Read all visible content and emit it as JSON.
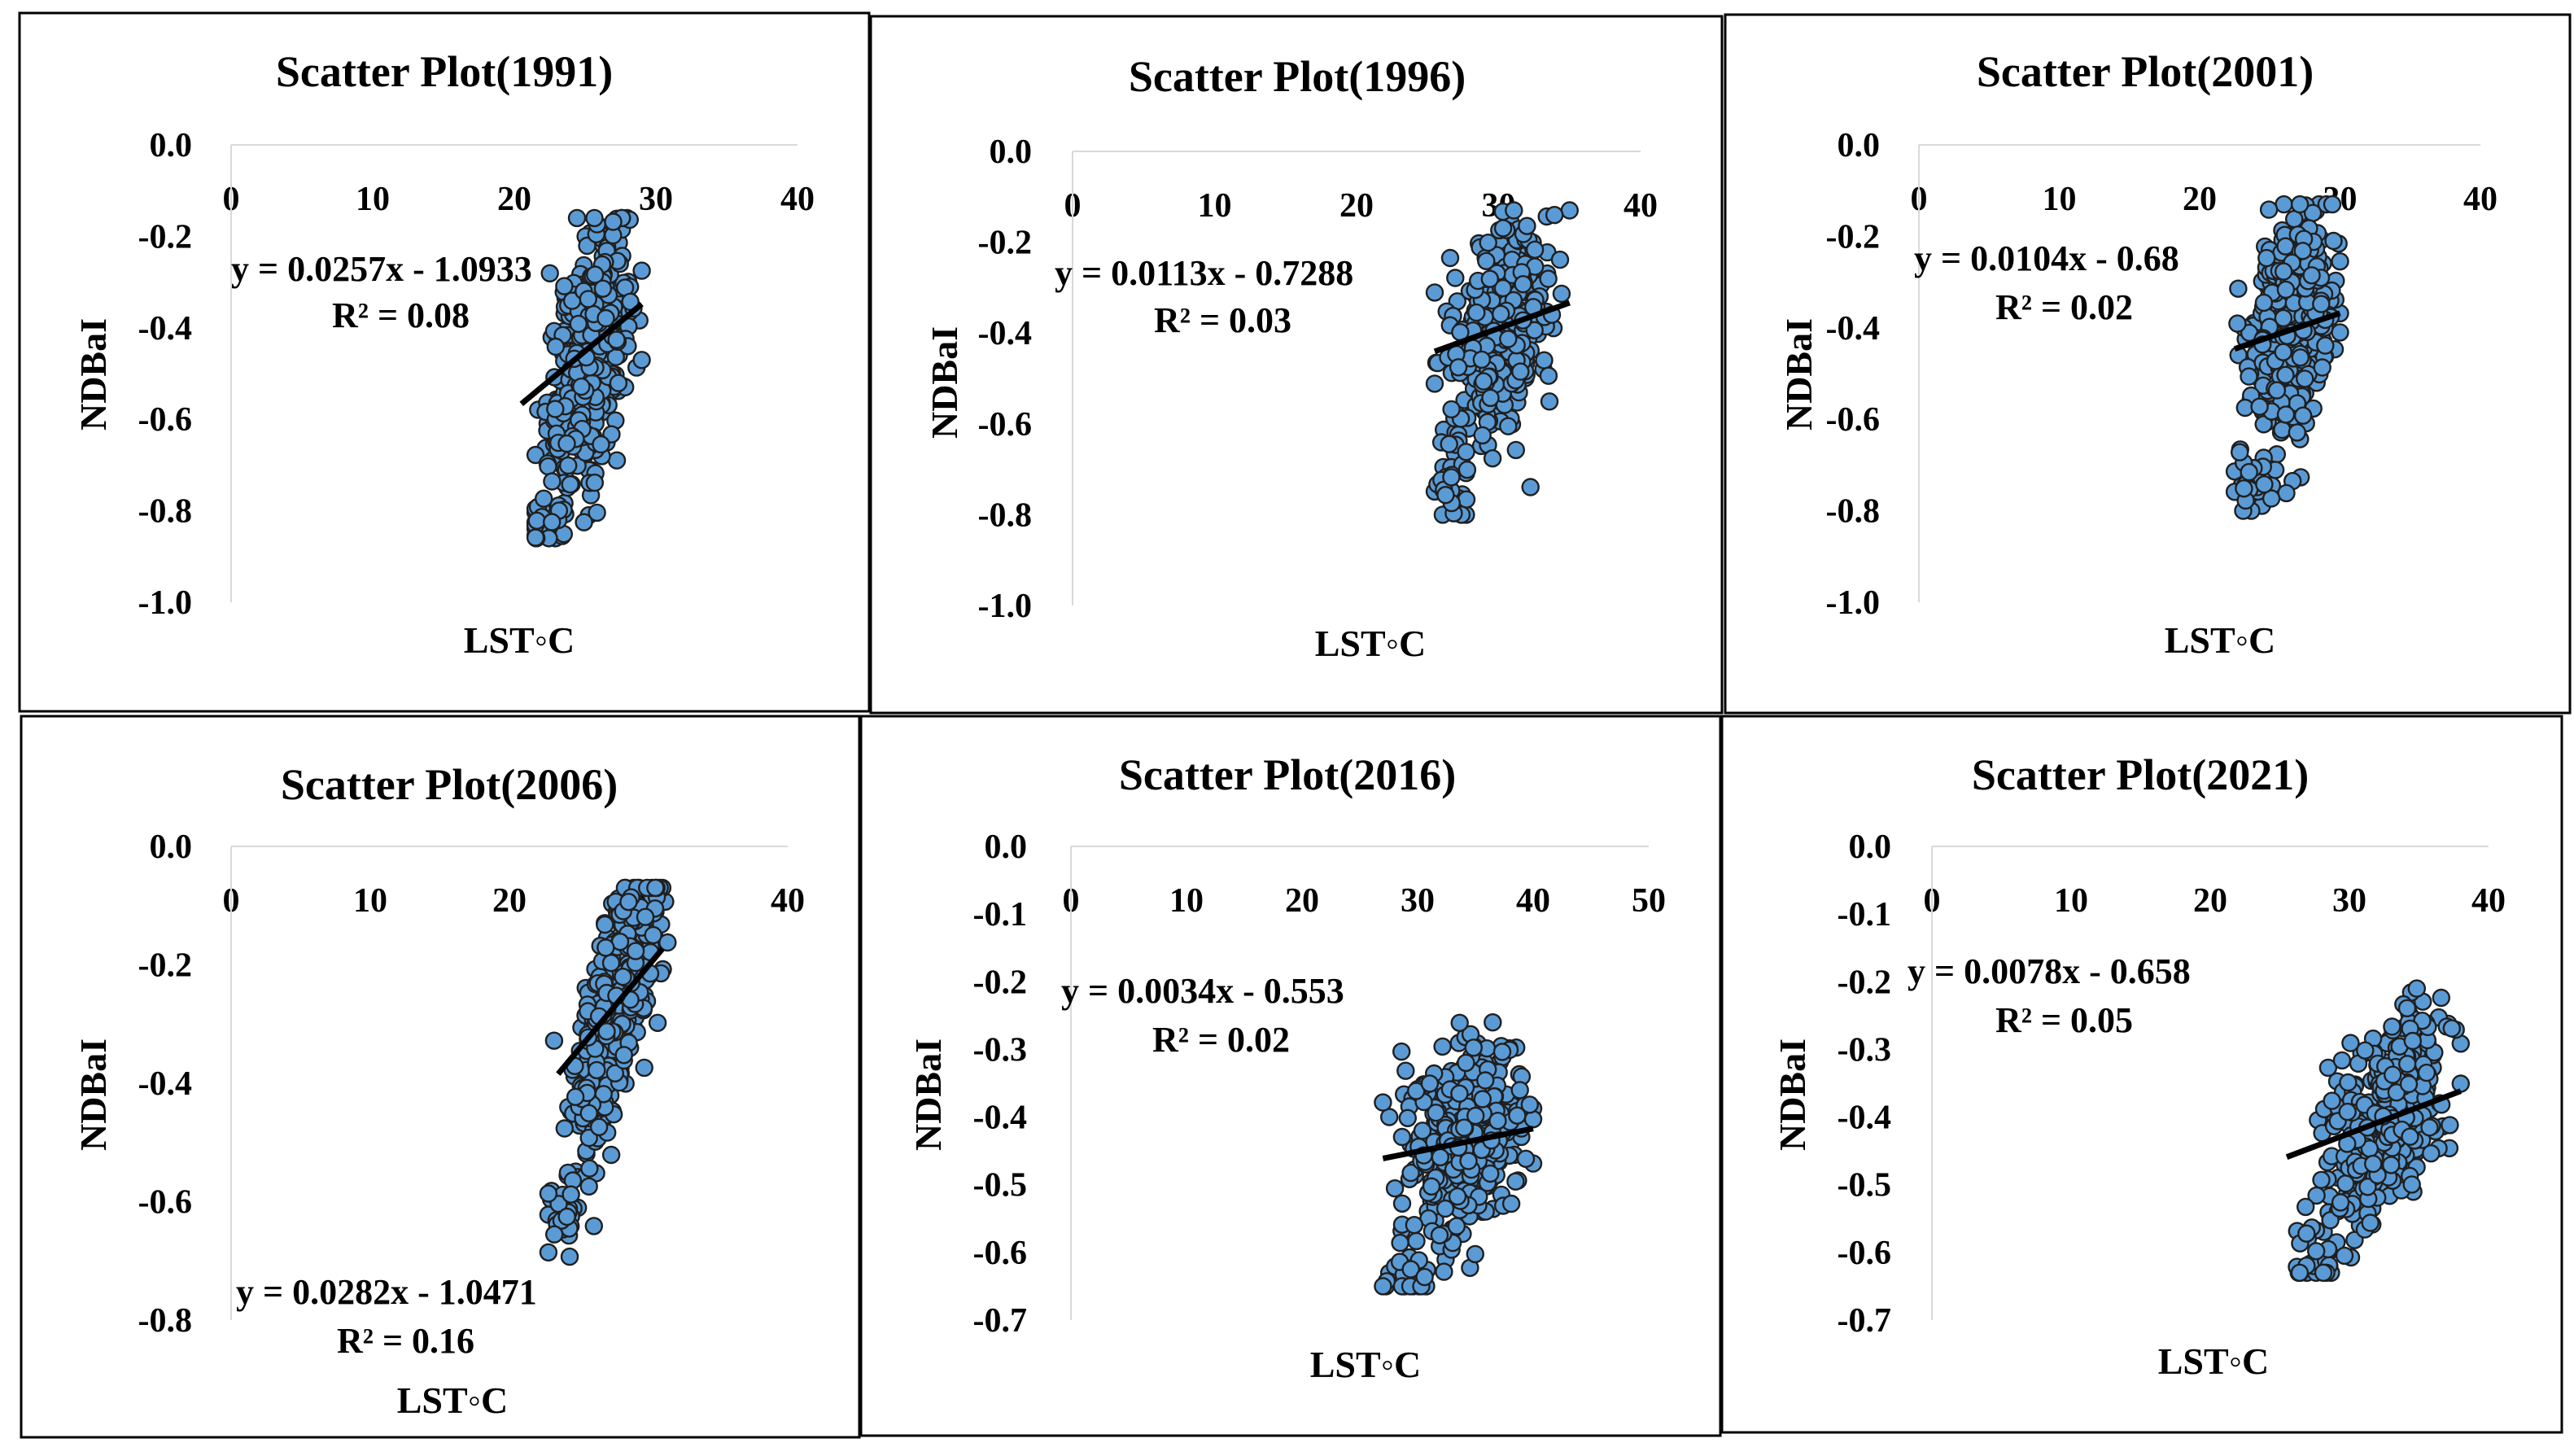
{
  "figure_name": "LST vs NDBaI scatter plots",
  "colors": {
    "marker_fill": "#5b9bd5",
    "marker_edge": "#1f1f1f",
    "trendline": "#000000",
    "axis": "#d9d9d9"
  },
  "chart_data": [
    {
      "type": "scatter",
      "title": "Scatter Plot(1991)",
      "xlabel": "LST◦C",
      "ylabel": "NDBaI",
      "xlim": [
        0,
        40
      ],
      "ylim": [
        -1.0,
        0.0
      ],
      "xticks": [
        "0",
        "10",
        "20",
        "30",
        "40"
      ],
      "yticks": [
        "0.0",
        "-0.2",
        "-0.4",
        "-0.6",
        "-0.8",
        "-1.0"
      ],
      "equation": "y = 0.0257x - 1.0933",
      "r2_label": "R² = 0.08",
      "slope": 0.0257,
      "intercept": -1.0933,
      "trend_x": [
        20.5,
        29.0
      ],
      "cloud": {
        "x_center": 25.2,
        "x_spread": 1.4,
        "x_min": 21.5,
        "x_max": 29.0,
        "y_center": -0.47,
        "y_spread": 0.12,
        "y_min": -0.86,
        "y_max": -0.16,
        "n": 420,
        "low_tail": {
          "x": 22.5,
          "y": -0.82,
          "n": 30
        }
      }
    },
    {
      "type": "scatter",
      "title": "Scatter Plot(1996)",
      "xlabel": "LST◦C",
      "ylabel": "NDBaI",
      "xlim": [
        0,
        40
      ],
      "ylim": [
        -1.0,
        0.0
      ],
      "xticks": [
        "0",
        "10",
        "20",
        "30",
        "40"
      ],
      "yticks": [
        "0.0",
        "-0.2",
        "-0.4",
        "-0.6",
        "-0.8",
        "-1.0"
      ],
      "equation": "y = 0.0113x - 0.7288",
      "r2_label": "R² = 0.03",
      "slope": 0.0113,
      "intercept": -0.7288,
      "trend_x": [
        25.5,
        35.0
      ],
      "cloud": {
        "x_center": 30.0,
        "x_spread": 1.8,
        "x_min": 25.5,
        "x_max": 35.0,
        "y_center": -0.4,
        "y_spread": 0.11,
        "y_min": -0.8,
        "y_max": -0.13,
        "n": 380,
        "low_tail": {
          "x": 26.5,
          "y": -0.75,
          "n": 28
        }
      }
    },
    {
      "type": "scatter",
      "title": "Scatter Plot(2001)",
      "xlabel": "LST◦C",
      "ylabel": "NDBaI",
      "xlim": [
        0,
        40
      ],
      "ylim": [
        -1.0,
        0.0
      ],
      "xticks": [
        "0",
        "10",
        "20",
        "30",
        "40"
      ],
      "yticks": [
        "0.0",
        "-0.2",
        "-0.4",
        "-0.6",
        "-0.8",
        "-1.0"
      ],
      "equation": "y = 0.0104x - 0.68",
      "r2_label": "R² = 0.02",
      "slope": 0.0104,
      "intercept": -0.68,
      "trend_x": [
        22.5,
        30.0
      ],
      "cloud": {
        "x_center": 26.8,
        "x_spread": 1.5,
        "x_min": 22.5,
        "x_max": 30.0,
        "y_center": -0.38,
        "y_spread": 0.11,
        "y_min": -0.8,
        "y_max": -0.13,
        "n": 420,
        "low_tail": {
          "x": 24.0,
          "y": -0.74,
          "n": 30
        }
      }
    },
    {
      "type": "scatter",
      "title": "Scatter Plot(2006)",
      "xlabel": "LST◦C",
      "ylabel": "NDBaI",
      "xlim": [
        0,
        40
      ],
      "ylim": [
        -0.8,
        0.0
      ],
      "xticks": [
        "0",
        "10",
        "20",
        "30",
        "40"
      ],
      "yticks": [
        "0.0",
        "-0.2",
        "-0.4",
        "-0.6",
        "-0.8"
      ],
      "equation": "y = 0.0282x - 1.0471",
      "r2_label": "R² = 0.16",
      "slope": 0.0282,
      "intercept": -1.0471,
      "trend_x": [
        23.5,
        31.0
      ],
      "cloud": {
        "x_center": 27.5,
        "x_spread": 1.5,
        "x_min": 22.8,
        "x_max": 31.5,
        "y_center": -0.28,
        "y_spread": 0.09,
        "y_min": -0.7,
        "y_max": -0.07,
        "n": 420,
        "low_tail": {
          "x": 24.0,
          "y": -0.62,
          "n": 30
        }
      }
    },
    {
      "type": "scatter",
      "title": "Scatter Plot(2016)",
      "xlabel": "LST◦C",
      "ylabel": "NDBaI",
      "xlim": [
        0,
        50
      ],
      "ylim": [
        -0.7,
        0.0
      ],
      "xticks": [
        "0",
        "10",
        "20",
        "30",
        "40",
        "50"
      ],
      "yticks": [
        "0.0",
        "-0.1",
        "-0.2",
        "-0.3",
        "-0.4",
        "-0.5",
        "-0.6",
        "-0.7"
      ],
      "equation": "y = 0.0034x - 0.553",
      "r2_label": "R² = 0.02",
      "slope": 0.0034,
      "intercept": -0.553,
      "trend_x": [
        27.0,
        40.0
      ],
      "cloud": {
        "x_center": 34.0,
        "x_spread": 2.4,
        "x_min": 27.0,
        "x_max": 40.0,
        "y_center": -0.43,
        "y_spread": 0.07,
        "y_min": -0.65,
        "y_max": -0.26,
        "n": 380,
        "low_tail": {
          "x": 29.0,
          "y": -0.63,
          "n": 26
        }
      }
    },
    {
      "type": "scatter",
      "title": "Scatter Plot(2021)",
      "xlabel": "LST◦C",
      "ylabel": "NDBaI",
      "xlim": [
        0,
        40
      ],
      "ylim": [
        -0.7,
        0.0
      ],
      "xticks": [
        "0",
        "10",
        "20",
        "30",
        "40"
      ],
      "yticks": [
        "0.0",
        "-0.1",
        "-0.2",
        "-0.3",
        "-0.4",
        "-0.5",
        "-0.6",
        "-0.7"
      ],
      "equation": "y = 0.0078x - 0.658",
      "r2_label": "R² = 0.05",
      "slope": 0.0078,
      "intercept": -0.658,
      "trend_x": [
        25.5,
        38.0
      ],
      "cloud": {
        "x_center": 32.5,
        "x_spread": 2.0,
        "x_min": 25.5,
        "x_max": 38.0,
        "y_center": -0.41,
        "y_spread": 0.07,
        "y_min": -0.63,
        "y_max": -0.21,
        "n": 420,
        "low_tail": {
          "x": 27.5,
          "y": -0.62,
          "n": 30
        }
      }
    }
  ]
}
